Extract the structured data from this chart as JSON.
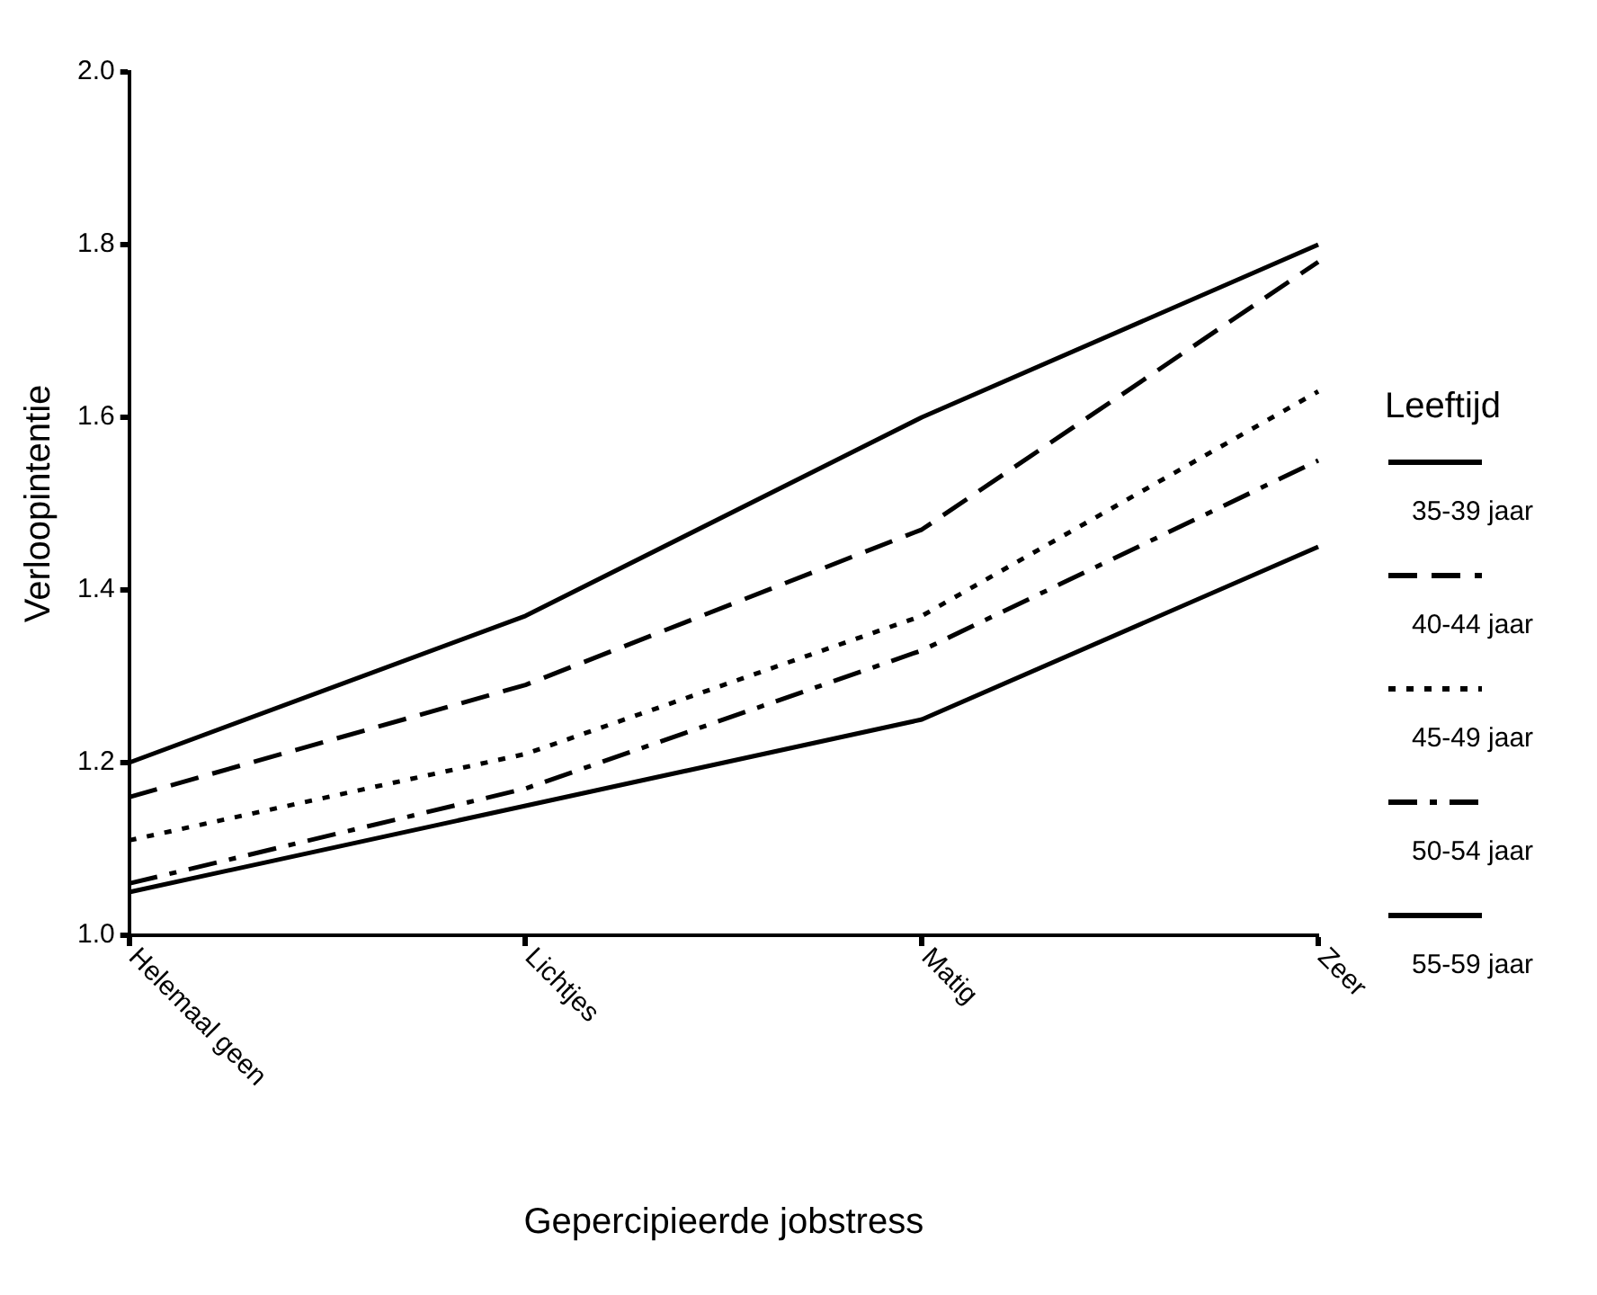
{
  "chart_data": {
    "type": "line",
    "xlabel": "Gepercipieerde jobstress",
    "ylabel": "Verloopintentie",
    "legend_title": "Leeftijd",
    "legend": "right",
    "grid": false,
    "marker": "none",
    "categories": [
      "Helemaal geen",
      "Lichtjes",
      "Matig",
      "Zeer"
    ],
    "ylim": [
      1.0,
      2.0
    ],
    "yticks": [
      {
        "value": 1.0,
        "label": "1.0"
      },
      1.2,
      1.4,
      1.6,
      1.8,
      {
        "value": 2.0,
        "label": "2.0"
      }
    ],
    "series": [
      {
        "name": "35-39 jaar",
        "color": "#000000",
        "line_style": "solid",
        "values": [
          1.2,
          1.37,
          1.6,
          1.8
        ]
      },
      {
        "name": "40-44 jaar",
        "color": "#000000",
        "line_style": "dashed",
        "values": [
          1.16,
          1.29,
          1.47,
          1.78
        ]
      },
      {
        "name": "45-49 jaar",
        "color": "#000000",
        "line_style": "dotted",
        "values": [
          1.11,
          1.21,
          1.37,
          1.63
        ]
      },
      {
        "name": "50-54 jaar",
        "color": "#000000",
        "line_style": "dashdot",
        "values": [
          1.06,
          1.17,
          1.33,
          1.55
        ]
      },
      {
        "name": "55-59 jaar",
        "color": "#000000",
        "line_style": "solid",
        "values": [
          1.05,
          1.15,
          1.25,
          1.45
        ]
      }
    ]
  }
}
